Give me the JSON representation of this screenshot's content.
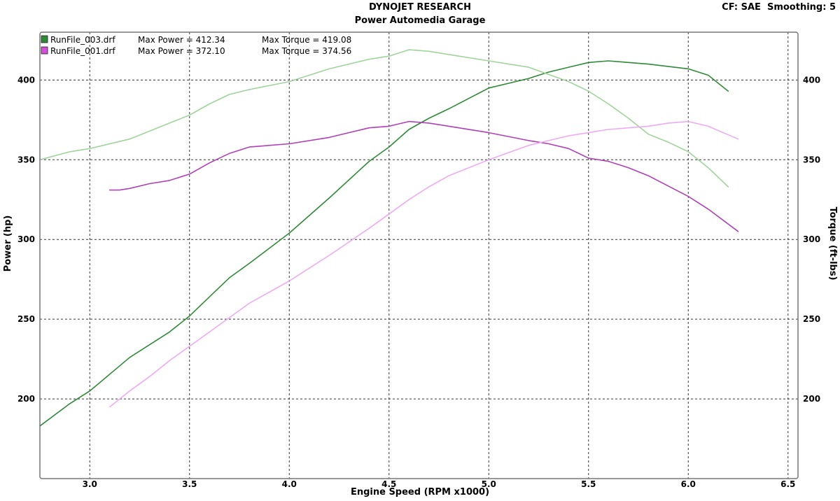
{
  "header": {
    "title": "DYNOJET RESEARCH",
    "subtitle": "Power Automedia Garage",
    "settings": "CF: SAE  Smoothing: 5"
  },
  "colors": {
    "run003_power": "#2f8a36",
    "run003_torque": "#9fd49a",
    "run001_power": "#b040b8",
    "run001_torque": "#eeaaf2",
    "grid": "#333333",
    "legend_green": "#2f8a36",
    "legend_magenta": "#d050d8"
  },
  "legend": [
    {
      "file": "RunFile_003.drf",
      "max_power": "Max Power = 412.34",
      "max_torque": "Max Torque = 419.08"
    },
    {
      "file": "RunFile_001.drf",
      "max_power": "Max Power = 372.10",
      "max_torque": "Max Torque = 374.56"
    }
  ],
  "chart_data": {
    "type": "line",
    "xlabel": "Engine Speed (RPM x1000)",
    "ylabel": "Power (hp)",
    "y2label": "Torque (ft-lbs)",
    "xlim": [
      2.75,
      6.55
    ],
    "ylim": [
      150,
      430
    ],
    "y2lim": [
      150,
      430
    ],
    "xticks": [
      "3.0",
      "3.5",
      "4.0",
      "4.5",
      "5.0",
      "5.5",
      "6.0",
      "6.5"
    ],
    "xtick_values": [
      3.0,
      3.5,
      4.0,
      4.5,
      5.0,
      5.5,
      6.0,
      6.5
    ],
    "yticks": [
      "200",
      "250",
      "300",
      "350",
      "400"
    ],
    "ytick_values": [
      200,
      250,
      300,
      350,
      400
    ],
    "y2ticks": [
      "200",
      "250",
      "300",
      "350",
      "400"
    ],
    "y2tick_values": [
      200,
      250,
      300,
      350,
      400
    ],
    "grid": true,
    "legend_position": "top-left",
    "series": [
      {
        "name": "RunFile_003.drf Power",
        "axis": "left",
        "color_key": "run003_power",
        "x": [
          2.75,
          2.9,
          3.0,
          3.2,
          3.4,
          3.5,
          3.6,
          3.7,
          3.8,
          4.0,
          4.2,
          4.4,
          4.5,
          4.6,
          4.7,
          4.8,
          5.0,
          5.2,
          5.3,
          5.4,
          5.5,
          5.6,
          5.7,
          5.8,
          6.0,
          6.1,
          6.2
        ],
        "y": [
          183,
          197,
          205,
          226,
          242,
          252,
          264,
          276,
          285,
          304,
          326,
          349,
          358,
          369,
          376,
          382,
          395,
          401,
          405,
          408,
          411,
          412,
          411,
          410,
          407,
          403,
          393
        ]
      },
      {
        "name": "RunFile_003.drf Torque",
        "axis": "right",
        "color_key": "run003_torque",
        "x": [
          2.75,
          2.9,
          3.0,
          3.2,
          3.4,
          3.5,
          3.6,
          3.7,
          3.8,
          4.0,
          4.2,
          4.4,
          4.5,
          4.6,
          4.7,
          4.8,
          5.0,
          5.2,
          5.4,
          5.5,
          5.6,
          5.7,
          5.8,
          5.9,
          6.0,
          6.1,
          6.2
        ],
        "y": [
          350,
          355,
          357,
          363,
          373,
          378,
          385,
          391,
          394,
          399,
          407,
          413,
          415,
          419,
          418,
          416,
          412,
          408,
          399,
          393,
          385,
          376,
          366,
          361,
          355,
          345,
          333
        ]
      },
      {
        "name": "RunFile_001.drf Power",
        "axis": "left",
        "color_key": "run001_power",
        "x": [
          3.1,
          3.15,
          3.2,
          3.3,
          3.4,
          3.5,
          3.6,
          3.7,
          3.8,
          4.0,
          4.2,
          4.4,
          4.5,
          4.6,
          4.7,
          4.8,
          5.0,
          5.2,
          5.3,
          5.4,
          5.5,
          5.6,
          5.7,
          5.8,
          6.0,
          6.1,
          6.25
        ],
        "y": [
          331,
          331,
          332,
          335,
          337,
          341,
          348,
          354,
          358,
          360,
          364,
          370,
          371,
          374,
          373,
          371,
          367,
          362,
          360,
          357,
          351,
          349,
          345,
          340,
          327,
          319,
          305
        ]
      },
      {
        "name": "RunFile_001.drf Torque",
        "axis": "right",
        "color_key": "run001_torque",
        "x": [
          3.1,
          3.2,
          3.3,
          3.4,
          3.5,
          3.6,
          3.7,
          3.8,
          4.0,
          4.2,
          4.4,
          4.5,
          4.6,
          4.7,
          4.8,
          5.0,
          5.2,
          5.3,
          5.4,
          5.5,
          5.6,
          5.7,
          5.8,
          5.9,
          6.0,
          6.1,
          6.25
        ],
        "y": [
          195,
          205,
          214,
          224,
          233,
          242,
          251,
          260,
          274,
          290,
          307,
          316,
          325,
          333,
          340,
          350,
          359,
          362,
          365,
          367,
          369,
          370,
          371,
          373,
          374,
          371,
          363
        ]
      }
    ]
  }
}
